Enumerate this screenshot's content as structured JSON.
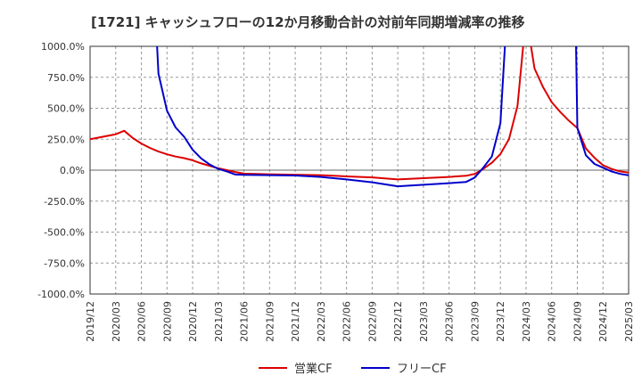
{
  "chart_data": {
    "type": "line",
    "title": "[1721]  キャッシュフローの12か月移動合計の対前年同期増減率の推移",
    "xlabel": "",
    "ylabel": "",
    "ylim": [
      -1000,
      1000
    ],
    "y_ticks": [
      1000,
      750,
      500,
      250,
      0,
      -250,
      -500,
      -750,
      -1000
    ],
    "y_tick_labels": [
      "1000.0%",
      "750.0%",
      "500.0%",
      "250.0%",
      "0.0%",
      "-250.0%",
      "-500.0%",
      "-750.0%",
      "-1000.0%"
    ],
    "x_tick_labels": [
      "2019/12",
      "2020/03",
      "2020/06",
      "2020/09",
      "2020/12",
      "2021/03",
      "2021/06",
      "2021/09",
      "2021/12",
      "2022/03",
      "2022/06",
      "2022/09",
      "2022/12",
      "2023/03",
      "2023/06",
      "2023/09",
      "2023/12",
      "2024/03",
      "2024/06",
      "2024/09",
      "2024/12",
      "2025/03"
    ],
    "grid": true,
    "legend_position": "bottom-center",
    "series": [
      {
        "name": "営業CF",
        "color": "#dd0000",
        "points": [
          [
            0,
            250
          ],
          [
            3,
            290
          ],
          [
            4,
            318
          ],
          [
            5,
            260
          ],
          [
            6,
            215
          ],
          [
            7,
            180
          ],
          [
            8,
            150
          ],
          [
            9,
            128
          ],
          [
            10,
            110
          ],
          [
            11,
            97
          ],
          [
            12,
            80
          ],
          [
            13,
            55
          ],
          [
            14,
            35
          ],
          [
            15,
            15
          ],
          [
            16,
            0
          ],
          [
            17,
            -15
          ],
          [
            18,
            -28
          ],
          [
            21,
            -33
          ],
          [
            24,
            -37
          ],
          [
            27,
            -40
          ],
          [
            30,
            -50
          ],
          [
            33,
            -58
          ],
          [
            36,
            -75
          ],
          [
            39,
            -65
          ],
          [
            42,
            -55
          ],
          [
            44,
            -45
          ],
          [
            45,
            -30
          ],
          [
            46,
            10
          ],
          [
            47,
            60
          ],
          [
            48,
            130
          ],
          [
            49,
            250
          ],
          [
            50,
            520
          ],
          [
            51,
            1250
          ],
          [
            52,
            820
          ],
          [
            53,
            670
          ],
          [
            54,
            550
          ],
          [
            55,
            470
          ],
          [
            56,
            400
          ],
          [
            57,
            340
          ],
          [
            58,
            175
          ],
          [
            59,
            100
          ],
          [
            60,
            40
          ],
          [
            61,
            10
          ],
          [
            62,
            -10
          ],
          [
            63,
            -20
          ]
        ]
      },
      {
        "name": "フリーCF",
        "color": "#0000cc",
        "points": [
          [
            7.7,
            1200
          ],
          [
            8,
            780
          ],
          [
            9,
            480
          ],
          [
            10,
            345
          ],
          [
            11,
            270
          ],
          [
            12,
            165
          ],
          [
            13,
            95
          ],
          [
            14,
            45
          ],
          [
            15,
            10
          ],
          [
            16,
            -10
          ],
          [
            17,
            -35
          ],
          [
            18,
            -38
          ],
          [
            21,
            -40
          ],
          [
            24,
            -43
          ],
          [
            27,
            -55
          ],
          [
            30,
            -75
          ],
          [
            33,
            -98
          ],
          [
            36,
            -130
          ],
          [
            39,
            -118
          ],
          [
            42,
            -105
          ],
          [
            44,
            -95
          ],
          [
            45,
            -60
          ],
          [
            46,
            20
          ],
          [
            47,
            110
          ],
          [
            48,
            380
          ],
          [
            48.7,
            1200
          ],
          null,
          [
            56.8,
            1200
          ],
          [
            57,
            340
          ],
          [
            58,
            120
          ],
          [
            59,
            50
          ],
          [
            60,
            20
          ],
          [
            61,
            -10
          ],
          [
            62,
            -30
          ],
          [
            63,
            -42
          ]
        ]
      }
    ]
  }
}
